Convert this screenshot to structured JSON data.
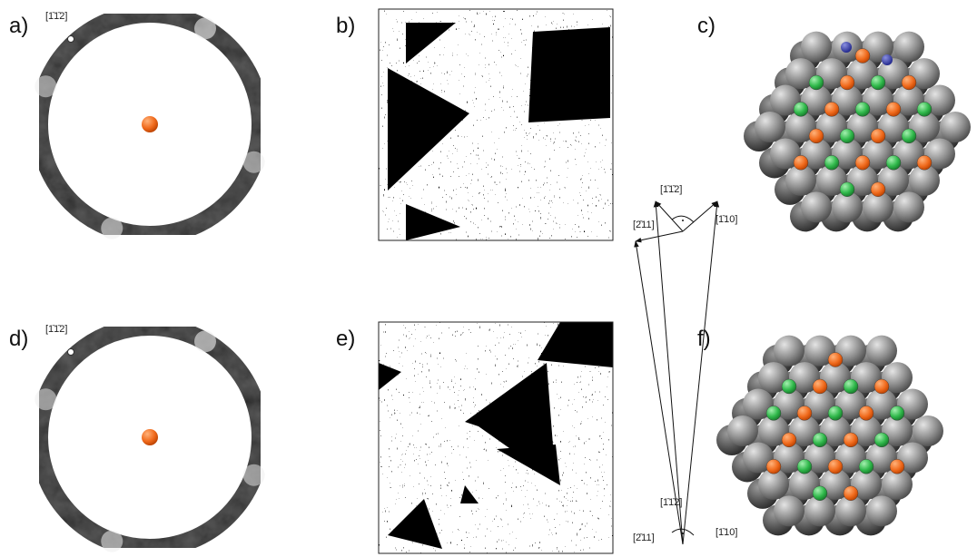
{
  "panels": [
    {
      "label": "a)",
      "direction": "[1̄1̄2]"
    },
    {
      "label": "b)"
    },
    {
      "label": "c)"
    },
    {
      "label": "d)",
      "direction": "[1̄1̄2]"
    },
    {
      "label": "e)"
    },
    {
      "label": "f)"
    }
  ],
  "axes": [
    {
      "up": "[1̄1̄2]",
      "left": "[2̄11]",
      "right": "[1̄10]"
    },
    {
      "up": "[1̄1̄2]",
      "left": "[2̄11]",
      "right": "[1̄10]"
    }
  ]
}
